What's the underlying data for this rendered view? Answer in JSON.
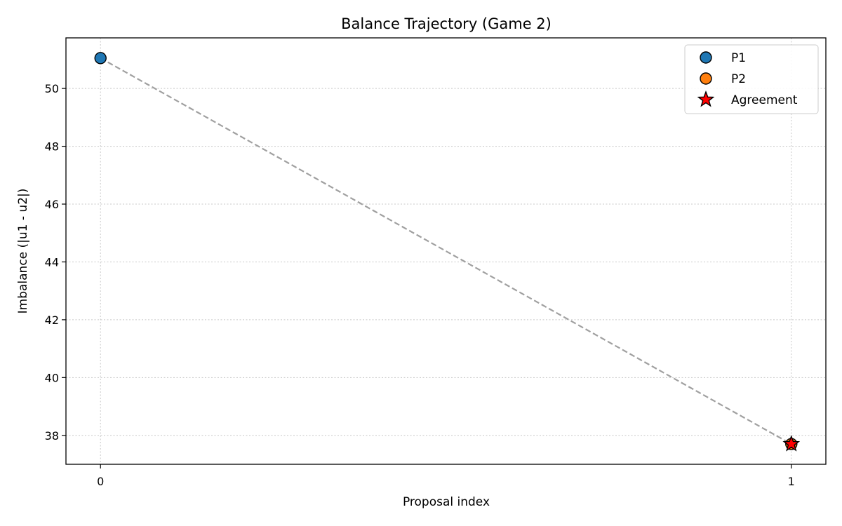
{
  "chart_data": {
    "type": "line",
    "title": "Balance Trajectory (Game 2)",
    "xlabel": "Proposal index",
    "ylabel": "Imbalance (|u1 - u2|)",
    "xlim": [
      -0.05,
      1.05
    ],
    "ylim": [
      37.0,
      51.75
    ],
    "xticks": [
      0,
      1
    ],
    "yticks": [
      38,
      40,
      42,
      44,
      46,
      48,
      50
    ],
    "grid": true,
    "legend_position": "top-right",
    "trajectory": {
      "x": [
        0,
        1
      ],
      "y": [
        51.05,
        37.7
      ],
      "color": "#a0a0a0",
      "style": "dashed"
    },
    "series": [
      {
        "name": "P1",
        "marker": "circle",
        "color": "#1f77b4",
        "points": [
          {
            "x": 0,
            "y": 51.05
          }
        ]
      },
      {
        "name": "P2",
        "marker": "circle",
        "color": "#ff7f0e",
        "points": [
          {
            "x": 1,
            "y": 37.7
          }
        ]
      },
      {
        "name": "Agreement",
        "marker": "star",
        "color": "#ff0000",
        "points": [
          {
            "x": 1,
            "y": 37.7
          }
        ]
      }
    ]
  }
}
